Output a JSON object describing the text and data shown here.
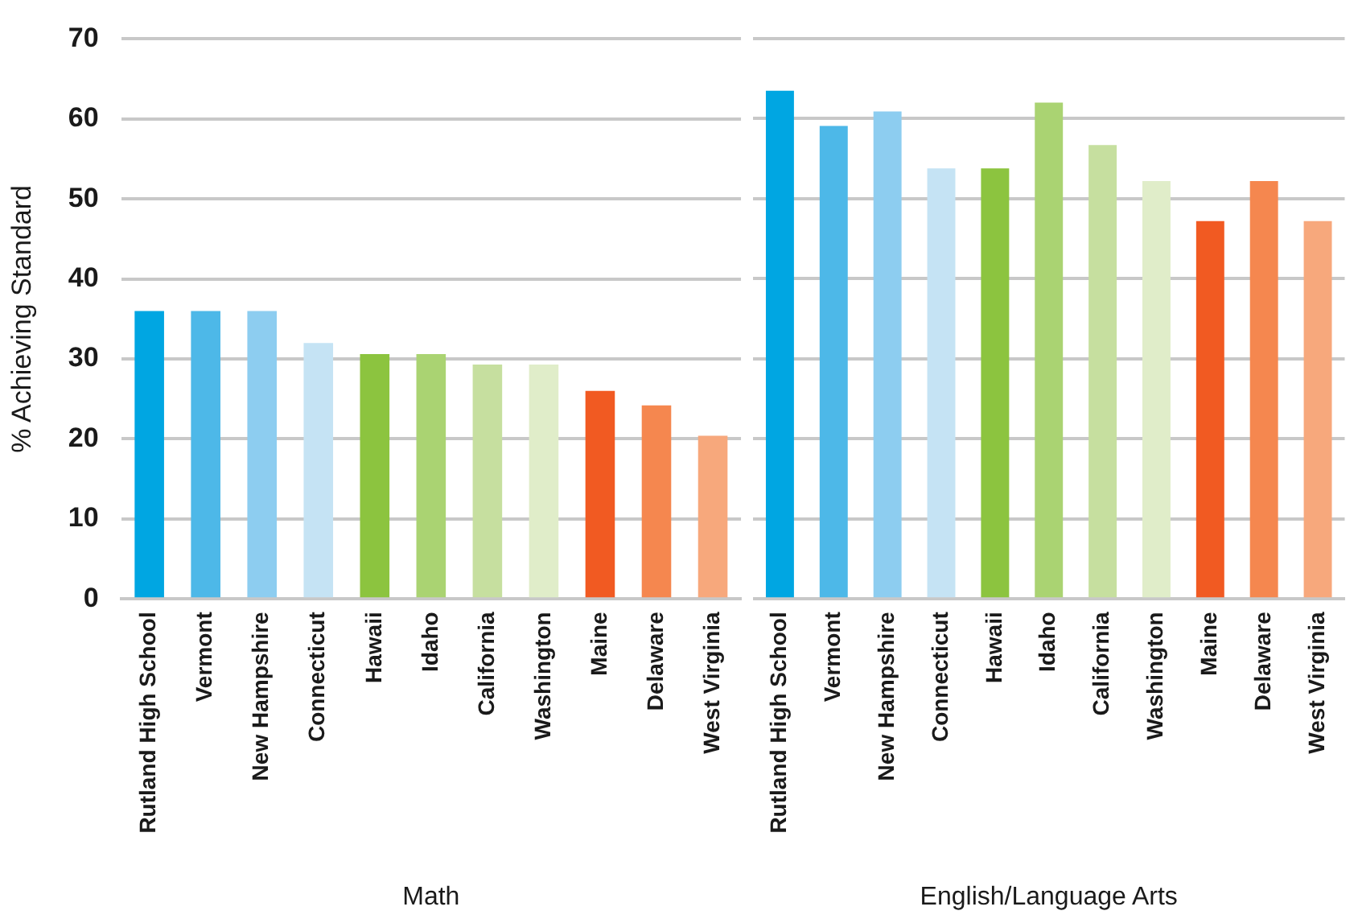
{
  "chart_data": [
    {
      "type": "bar",
      "ylabel": "% Achieving Standard",
      "xlabel": "Math",
      "categories": [
        "Rutland High School",
        "Vermont",
        "New Hampshire",
        "Connecticut",
        "Hawaii",
        "Idaho",
        "California",
        "Washington",
        "Maine",
        "Delaware",
        "West Virginia"
      ],
      "values": [
        36,
        36,
        36,
        32,
        30.6,
        30.6,
        29.3,
        29.3,
        26,
        24.2,
        20.4
      ],
      "colors": [
        "#00a6e2",
        "#4db8e8",
        "#8dcdf0",
        "#c5e3f4",
        "#8cc43f",
        "#aad372",
        "#c6df9f",
        "#e0edc9",
        "#f15a22",
        "#f5874f",
        "#f7a87c"
      ],
      "ylim": [
        0,
        70
      ],
      "yticks": [
        0,
        10,
        20,
        30,
        40,
        50,
        60,
        70
      ],
      "grid": "y"
    },
    {
      "type": "bar",
      "xlabel": "English/Language Arts",
      "categories": [
        "Rutland High School",
        "Vermont",
        "New Hampshire",
        "Connecticut",
        "Hawaii",
        "Idaho",
        "California",
        "Washington",
        "Maine",
        "Delaware",
        "West Virginia"
      ],
      "values": [
        63.5,
        59.1,
        60.9,
        53.8,
        53.8,
        62,
        56.7,
        52.2,
        47.2,
        52.2,
        47.2
      ],
      "colors": [
        "#00a6e2",
        "#4db8e8",
        "#8dcdf0",
        "#c5e3f4",
        "#8cc43f",
        "#aad372",
        "#c6df9f",
        "#e0edc9",
        "#f15a22",
        "#f5874f",
        "#f7a87c"
      ],
      "ylim": [
        0,
        70
      ],
      "yticks": [
        0,
        10,
        20,
        30,
        40,
        50,
        60,
        70
      ],
      "grid": "y",
      "tick_labels": "x"
    }
  ]
}
